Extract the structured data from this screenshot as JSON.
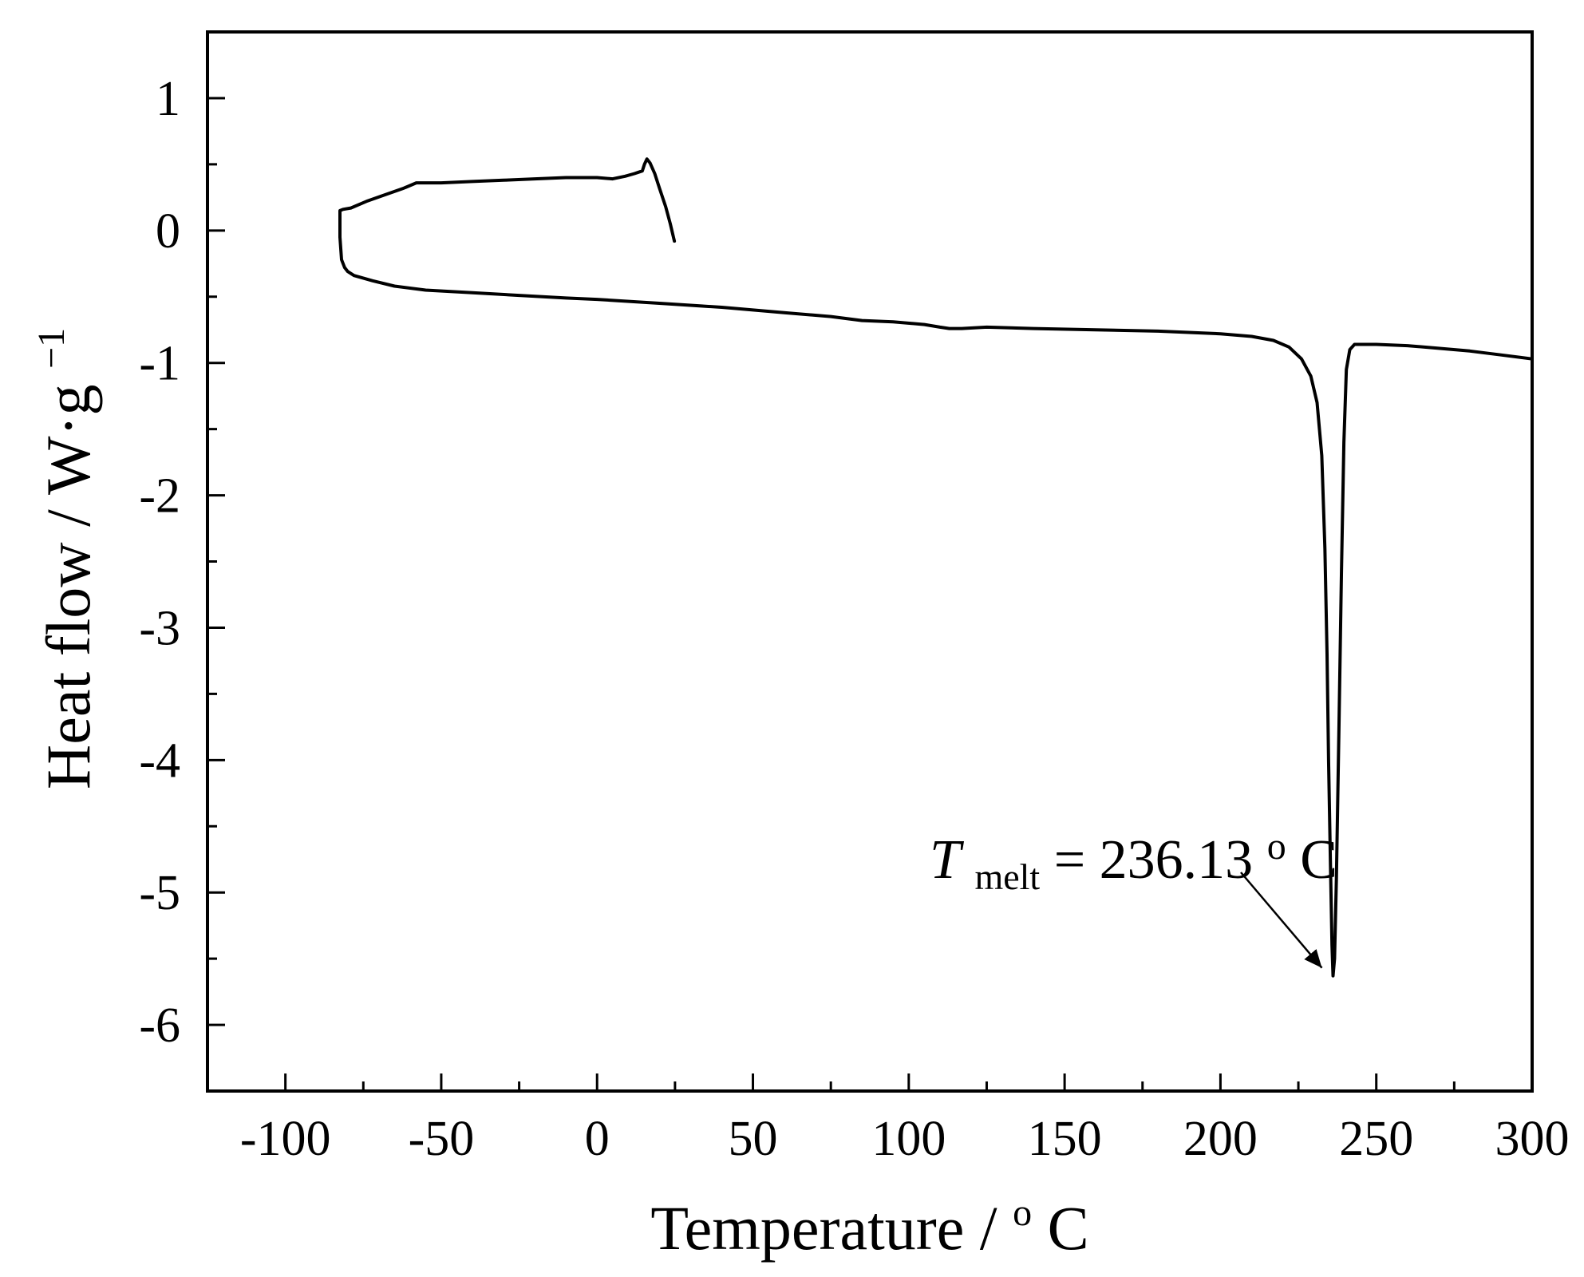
{
  "chart_data": {
    "type": "line",
    "xlabel": "Temperature / ",
    "xlabel_unit_sup": "o",
    "xlabel_unit": "C",
    "ylabel": "Heat flow / W·g",
    "ylabel_sup": "−1",
    "xlim": [
      -125,
      300
    ],
    "ylim": [
      -6.5,
      1.5
    ],
    "x_ticks": [
      -100,
      -50,
      0,
      50,
      100,
      150,
      200,
      250,
      300
    ],
    "x_tick_labels": [
      "-100",
      "-50",
      "0",
      "50",
      "100",
      "150",
      "200",
      "250",
      "300"
    ],
    "y_ticks": [
      1,
      0,
      -1,
      -2,
      -3,
      -4,
      -5,
      -6
    ],
    "y_tick_labels": [
      "1",
      "0",
      "-1",
      "-2",
      "-3",
      "-4",
      "-5",
      "-6"
    ],
    "grid": false,
    "series": [
      {
        "values": [
          [
            24.8,
            -0.08
          ],
          [
            23.5,
            0.05
          ],
          [
            22,
            0.18
          ],
          [
            20,
            0.32
          ],
          [
            18.5,
            0.43
          ],
          [
            17,
            0.51
          ],
          [
            16,
            0.54
          ],
          [
            15.2,
            0.5
          ],
          [
            14.5,
            0.45
          ],
          [
            12,
            0.43
          ],
          [
            9,
            0.41
          ],
          [
            5,
            0.39
          ],
          [
            0,
            0.4
          ],
          [
            -10,
            0.4
          ],
          [
            -20,
            0.39
          ],
          [
            -30,
            0.38
          ],
          [
            -40,
            0.37
          ],
          [
            -50,
            0.36
          ],
          [
            -58,
            0.36
          ],
          [
            -62,
            0.32
          ],
          [
            -68,
            0.27
          ],
          [
            -74,
            0.22
          ],
          [
            -79,
            0.17
          ],
          [
            -81.5,
            0.16
          ],
          [
            -82.5,
            0.15
          ],
          [
            -82.5,
            -0.05
          ],
          [
            -82,
            -0.22
          ],
          [
            -81,
            -0.28
          ],
          [
            -80,
            -0.31
          ],
          [
            -78,
            -0.34
          ],
          [
            -72,
            -0.38
          ],
          [
            -65,
            -0.42
          ],
          [
            -55,
            -0.45
          ],
          [
            -40,
            -0.47
          ],
          [
            -25,
            -0.49
          ],
          [
            -10,
            -0.51
          ],
          [
            0,
            -0.52
          ],
          [
            20,
            -0.55
          ],
          [
            40,
            -0.58
          ],
          [
            60,
            -0.62
          ],
          [
            75,
            -0.65
          ],
          [
            85,
            -0.68
          ],
          [
            95,
            -0.69
          ],
          [
            105,
            -0.71
          ],
          [
            110,
            -0.73
          ],
          [
            113,
            -0.74
          ],
          [
            117,
            -0.74
          ],
          [
            125,
            -0.73
          ],
          [
            140,
            -0.74
          ],
          [
            160,
            -0.75
          ],
          [
            180,
            -0.76
          ],
          [
            200,
            -0.78
          ],
          [
            210,
            -0.8
          ],
          [
            217,
            -0.83
          ],
          [
            222,
            -0.88
          ],
          [
            226,
            -0.97
          ],
          [
            229,
            -1.1
          ],
          [
            231,
            -1.3
          ],
          [
            232.5,
            -1.7
          ],
          [
            233.5,
            -2.4
          ],
          [
            234.2,
            -3.2
          ],
          [
            234.7,
            -4.0
          ],
          [
            235.3,
            -4.8
          ],
          [
            235.8,
            -5.4
          ],
          [
            236.13,
            -5.63
          ],
          [
            236.6,
            -5.5
          ],
          [
            237.2,
            -4.9
          ],
          [
            238,
            -3.8
          ],
          [
            238.8,
            -2.6
          ],
          [
            239.6,
            -1.6
          ],
          [
            240.4,
            -1.05
          ],
          [
            241.5,
            -0.9
          ],
          [
            243,
            -0.86
          ],
          [
            250,
            -0.86
          ],
          [
            260,
            -0.87
          ],
          [
            270,
            -0.89
          ],
          [
            280,
            -0.91
          ],
          [
            290,
            -0.94
          ],
          [
            300,
            -0.97
          ]
        ]
      }
    ],
    "annotations": [
      {
        "label_main": "T",
        "label_sub": "melt",
        "label_rest": "= 236.13 ",
        "label_unit_sup": "o",
        "label_unit": "C",
        "points_to": [
          236.13,
          -5.63
        ]
      }
    ]
  }
}
